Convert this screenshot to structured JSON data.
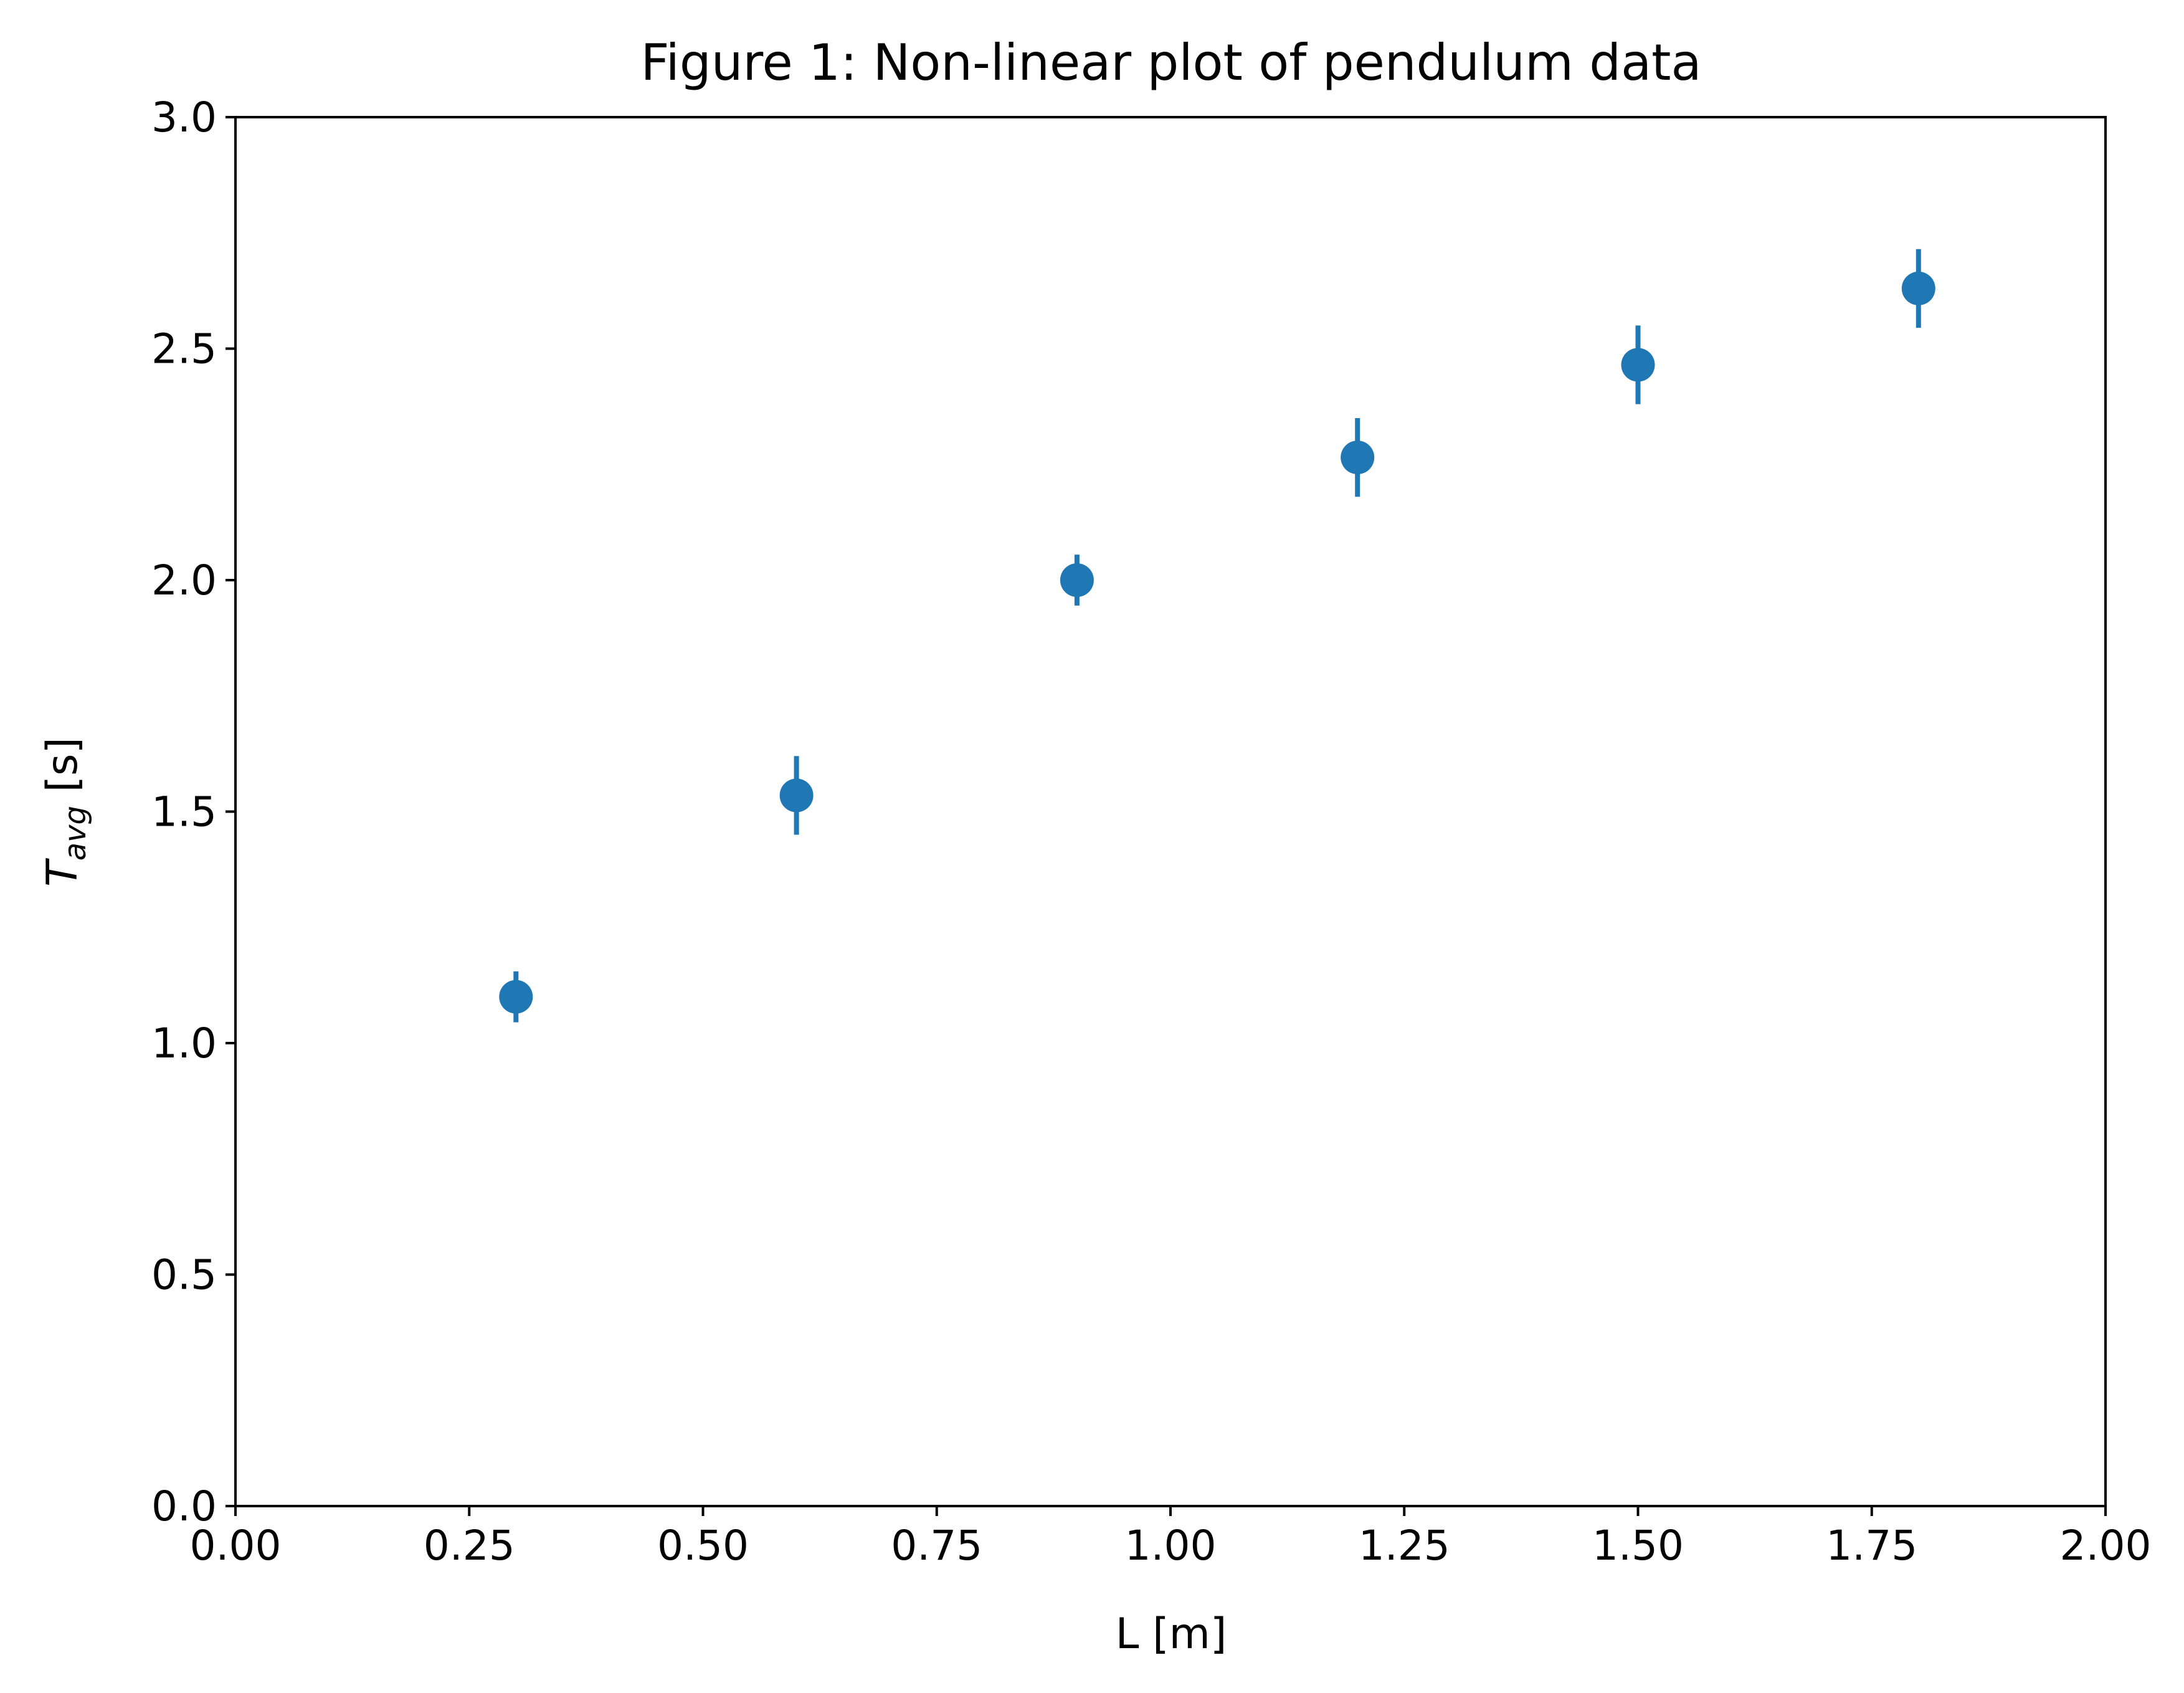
{
  "chart_data": {
    "type": "scatter",
    "title": "Figure 1: Non-linear plot of pendulum data",
    "xlabel": "L [m]",
    "ylabel": {
      "symbol": "T",
      "subscript": "avg",
      "unit": " [s]"
    },
    "xlim": [
      0.0,
      2.0
    ],
    "ylim": [
      0.0,
      3.0
    ],
    "x_ticks": [
      {
        "value": 0.0,
        "label": "0.00"
      },
      {
        "value": 0.25,
        "label": "0.25"
      },
      {
        "value": 0.5,
        "label": "0.50"
      },
      {
        "value": 0.75,
        "label": "0.75"
      },
      {
        "value": 1.0,
        "label": "1.00"
      },
      {
        "value": 1.25,
        "label": "1.25"
      },
      {
        "value": 1.5,
        "label": "1.50"
      },
      {
        "value": 1.75,
        "label": "1.75"
      },
      {
        "value": 2.0,
        "label": "2.00"
      }
    ],
    "y_ticks": [
      {
        "value": 0.0,
        "label": "0.0"
      },
      {
        "value": 0.5,
        "label": "0.5"
      },
      {
        "value": 1.0,
        "label": "1.0"
      },
      {
        "value": 1.5,
        "label": "1.5"
      },
      {
        "value": 2.0,
        "label": "2.0"
      },
      {
        "value": 2.5,
        "label": "2.5"
      },
      {
        "value": 3.0,
        "label": "3.0"
      }
    ],
    "grid": false,
    "series": [
      {
        "name": "pendulum data",
        "color": "#1f77b4",
        "points": [
          {
            "x": 0.3,
            "y": 1.1,
            "yerr": 0.055
          },
          {
            "x": 0.6,
            "y": 1.535,
            "yerr": 0.085
          },
          {
            "x": 0.9,
            "y": 2.0,
            "yerr": 0.055
          },
          {
            "x": 1.2,
            "y": 2.265,
            "yerr": 0.085
          },
          {
            "x": 1.5,
            "y": 2.465,
            "yerr": 0.085
          },
          {
            "x": 1.8,
            "y": 2.63,
            "yerr": 0.085
          }
        ]
      }
    ]
  }
}
